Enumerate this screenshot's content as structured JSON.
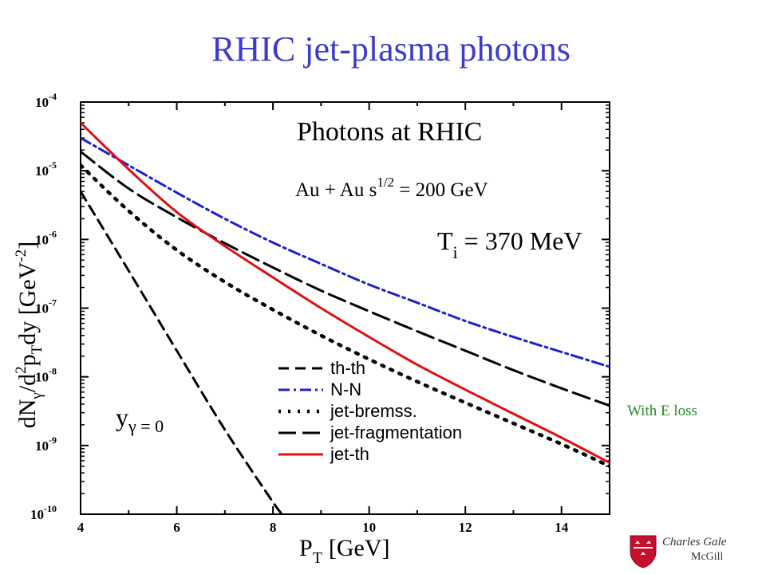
{
  "slide": {
    "title": "RHIC jet-plasma photons",
    "side_note": "With E loss",
    "footer_name": "Charles Gale",
    "footer_institution": "McGill"
  },
  "chart_data": {
    "type": "line",
    "title": "Photons at RHIC",
    "xlabel": {
      "main": "P",
      "sub": "T",
      "unit": "[GeV]"
    },
    "ylabel": "dN_γ/d²p_T dy [GeV⁻²]",
    "xlim": [
      4,
      15
    ],
    "ylim": [
      1e-10,
      0.0001
    ],
    "yscale": "log",
    "x_ticks": [
      4,
      6,
      8,
      10,
      12,
      14
    ],
    "y_tick_exponents": [
      -4,
      -5,
      -6,
      -7,
      -8,
      -9,
      -10
    ],
    "annotations": {
      "system": "Au + Au  s",
      "system_sup": "1/2",
      "system_tail": " = 200 GeV",
      "temp_main": "T",
      "temp_sub": "i",
      "temp_tail": " = 370 MeV",
      "rapidity_main": "y",
      "rapidity_sub": "γ",
      "rapidity_tail": " = 0"
    },
    "legend_position": "bottom-center",
    "series": [
      {
        "name": "th-th",
        "color": "#000000",
        "dash": "13,8",
        "width": 3,
        "x": [
          4,
          5,
          6,
          7,
          8,
          8.2
        ],
        "y": [
          5e-06,
          3.5e-07,
          2.4e-08,
          1.7e-09,
          1.5e-10,
          1e-10
        ]
      },
      {
        "name": "N-N",
        "color": "#1f1fd0",
        "dash": "14,5,3,5",
        "width": 3,
        "x": [
          4,
          5,
          6,
          7,
          8,
          9,
          10,
          11,
          12,
          13,
          14,
          15
        ],
        "y": [
          3e-05,
          1.2e-05,
          4.8e-06,
          2e-06,
          9e-07,
          4.4e-07,
          2.2e-07,
          1.2e-07,
          6.5e-08,
          3.8e-08,
          2.3e-08,
          1.4e-08
        ]
      },
      {
        "name": "jet-bremss.",
        "color": "#000000",
        "dash": "3,9",
        "width": 4.5,
        "x": [
          4,
          5,
          6,
          7,
          8,
          9,
          10,
          11,
          12,
          13,
          14,
          15
        ],
        "y": [
          1.2e-05,
          2.6e-06,
          7e-07,
          2.4e-07,
          9.5e-08,
          4e-08,
          1.8e-08,
          8.5e-09,
          4.2e-09,
          2.1e-09,
          1.05e-09,
          5e-10
        ]
      },
      {
        "name": "jet-fragmentation",
        "color": "#000000",
        "dash": "22,8",
        "width": 3,
        "x": [
          4,
          5,
          6,
          7,
          8,
          9,
          10,
          11,
          12,
          13,
          14,
          15
        ],
        "y": [
          1.9e-05,
          5.5e-06,
          2.1e-06,
          8.8e-07,
          3.9e-07,
          1.8e-07,
          9e-08,
          4.6e-08,
          2.4e-08,
          1.25e-08,
          6.8e-09,
          3.8e-09
        ]
      },
      {
        "name": "jet-th",
        "color": "#e01010",
        "dash": "",
        "width": 3,
        "x": [
          4,
          5,
          6,
          7,
          8,
          9,
          10,
          11,
          12,
          13,
          14,
          15
        ],
        "y": [
          5e-05,
          1.05e-05,
          2.5e-06,
          8e-07,
          2.8e-07,
          1e-07,
          3.8e-08,
          1.5e-08,
          6.5e-09,
          2.9e-09,
          1.3e-09,
          5.6e-10
        ]
      }
    ]
  }
}
